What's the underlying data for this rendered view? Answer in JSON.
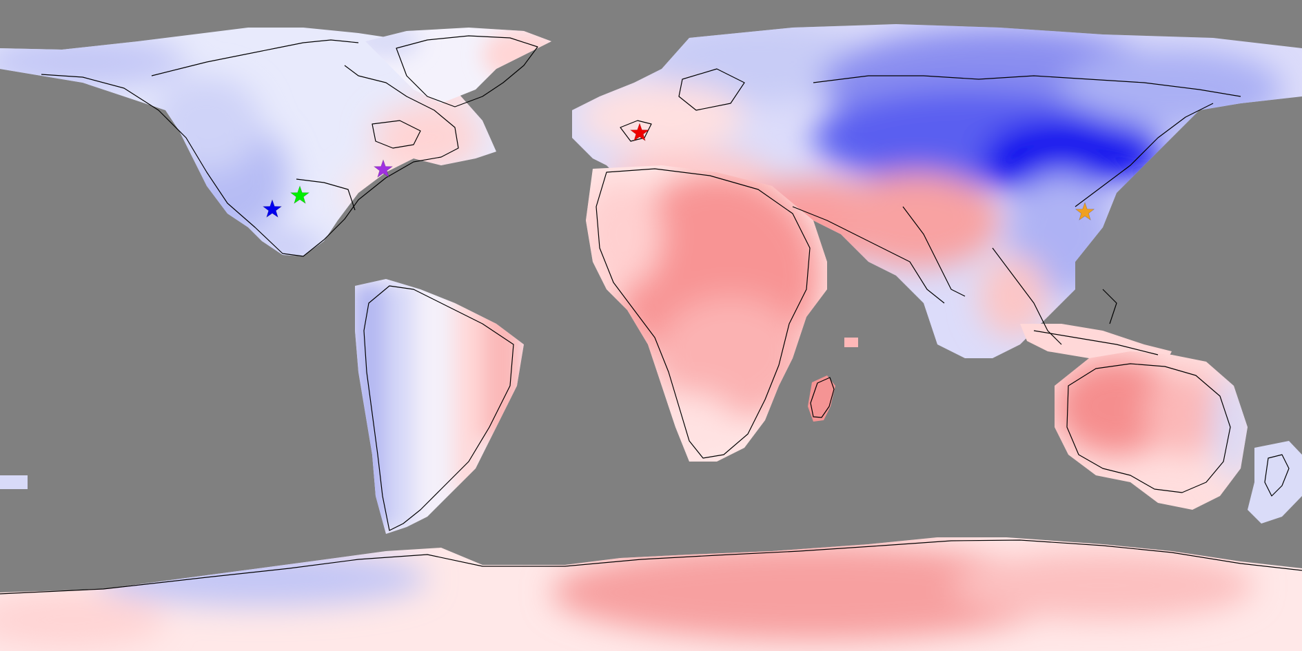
{
  "map": {
    "kind": "global anomaly map, equirectangular projection",
    "ocean_color": "#808080",
    "land_color_scale": {
      "cold_strong": "#0000ee",
      "cold_medium": "#5a5af0",
      "cold_light": "#aab0f4",
      "cold_faint": "#d8dcfa",
      "neutral": "#fff4f4",
      "warm_faint": "#ffdcdc",
      "warm_light": "#ffc0c0",
      "warm_medium": "#fa9c9c",
      "warm_strong": "#f47e7e"
    },
    "coastline_color": "#000000"
  },
  "markers": [
    {
      "id": "marker-west-usa",
      "color": "#0000ee",
      "shape": "star"
    },
    {
      "id": "marker-central-usa",
      "color": "#00ee00",
      "shape": "star"
    },
    {
      "id": "marker-east-usa",
      "color": "#a030e0",
      "shape": "star"
    },
    {
      "id": "marker-uk",
      "color": "#ee0000",
      "shape": "star"
    },
    {
      "id": "marker-east-china",
      "color": "#f0a020",
      "shape": "star"
    }
  ]
}
